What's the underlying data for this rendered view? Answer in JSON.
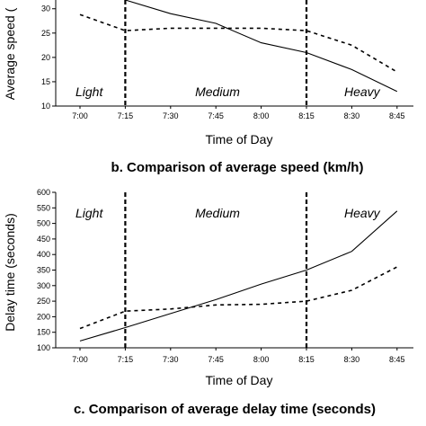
{
  "chart_data": [
    {
      "type": "line",
      "title": "b. Comparison of average speed (km/h)",
      "xlabel": "Time of Day",
      "ylabel": "Average speed (",
      "categories": [
        "7:00",
        "7:15",
        "7:30",
        "7:45",
        "8:00",
        "8:15",
        "8:30",
        "8:45"
      ],
      "yticks": [
        10,
        15,
        20,
        25,
        30
      ],
      "ylim": [
        10,
        31.8
      ],
      "regions": [
        "Light",
        "Medium",
        "Heavy"
      ],
      "dividers_at": [
        "7:15",
        "8:15"
      ],
      "grid": false,
      "legend": "none",
      "series": [
        {
          "style": "solid",
          "points": [
            [
              7.25,
              31.8
            ],
            [
              7.5,
              29.0
            ],
            [
              7.75,
              27.0
            ],
            [
              8.0,
              23.0
            ],
            [
              8.25,
              21.0
            ],
            [
              8.5,
              17.5
            ],
            [
              8.75,
              13.0
            ]
          ]
        },
        {
          "style": "dashed",
          "points": [
            [
              7.0,
              28.8
            ],
            [
              7.25,
              25.5
            ],
            [
              7.5,
              26.0
            ],
            [
              7.75,
              26.0
            ],
            [
              8.0,
              26.0
            ],
            [
              8.25,
              25.5
            ],
            [
              8.5,
              22.5
            ],
            [
              8.75,
              17.0
            ]
          ]
        }
      ]
    },
    {
      "type": "line",
      "title": "c. Comparison of average delay time (seconds)",
      "xlabel": "Time of Day",
      "ylabel": "Delay time (seconds)",
      "categories": [
        "7:00",
        "7:15",
        "7:30",
        "7:45",
        "8:00",
        "8:15",
        "8:30",
        "8:45"
      ],
      "yticks": [
        100,
        150,
        200,
        250,
        300,
        350,
        400,
        450,
        500,
        550,
        600
      ],
      "ylim": [
        100,
        600
      ],
      "regions": [
        "Light",
        "Medium",
        "Heavy"
      ],
      "dividers_at": [
        "7:15",
        "8:15"
      ],
      "grid": false,
      "legend": "none",
      "series": [
        {
          "style": "solid",
          "points": [
            [
              7.0,
              122
            ],
            [
              7.25,
              165
            ],
            [
              7.5,
              210
            ],
            [
              7.75,
              255
            ],
            [
              8.0,
              305
            ],
            [
              8.25,
              350
            ],
            [
              8.5,
              410
            ],
            [
              8.75,
              540
            ]
          ]
        },
        {
          "style": "dashed",
          "points": [
            [
              7.0,
              162
            ],
            [
              7.25,
              218
            ],
            [
              7.5,
              225
            ],
            [
              7.75,
              238
            ],
            [
              8.0,
              240
            ],
            [
              8.25,
              250
            ],
            [
              8.5,
              285
            ],
            [
              8.75,
              360
            ]
          ]
        }
      ]
    }
  ]
}
